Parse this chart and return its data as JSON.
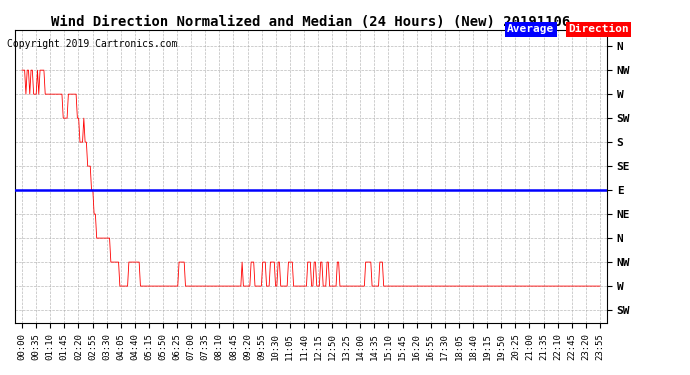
{
  "title": "Wind Direction Normalized and Median (24 Hours) (New) 20191106",
  "copyright": "Copyright 2019 Cartronics.com",
  "legend_blue_label": "Average",
  "legend_red_label": "Direction",
  "bg_color": "#ffffff",
  "plot_bg_color": "#ffffff",
  "grid_color": "#aaaaaa",
  "line_color_red": "#ff0000",
  "line_color_blue": "#0000ff",
  "ytick_labels_top_to_bottom": [
    "N",
    "NW",
    "W",
    "SW",
    "S",
    "SE",
    "E",
    "NE",
    "N",
    "NW",
    "W",
    "SW"
  ],
  "ytick_values": [
    360,
    315,
    270,
    225,
    180,
    135,
    90,
    45,
    0,
    -45,
    -90,
    -135
  ],
  "ylim": [
    -160,
    390
  ],
  "blue_line_y": 90,
  "time_labels": [
    "00:00",
    "00:35",
    "01:10",
    "01:45",
    "02:20",
    "02:55",
    "03:30",
    "04:05",
    "04:40",
    "05:15",
    "05:50",
    "06:25",
    "07:00",
    "07:35",
    "08:10",
    "08:45",
    "09:20",
    "09:55",
    "10:30",
    "11:05",
    "11:40",
    "12:15",
    "12:50",
    "13:25",
    "14:00",
    "14:35",
    "15:10",
    "15:45",
    "16:20",
    "16:55",
    "17:30",
    "18:05",
    "18:40",
    "19:15",
    "19:50",
    "20:25",
    "21:00",
    "21:35",
    "22:10",
    "22:45",
    "23:20",
    "23:55"
  ],
  "red_data_raw": [
    315,
    315,
    315,
    270,
    315,
    315,
    270,
    315,
    315,
    270,
    270,
    270,
    315,
    270,
    315,
    315,
    315,
    315,
    270,
    270,
    270,
    270,
    270,
    270,
    270,
    270,
    270,
    270,
    270,
    270,
    270,
    270,
    225,
    225,
    225,
    225,
    270,
    270,
    270,
    270,
    270,
    270,
    270,
    225,
    225,
    180,
    180,
    180,
    225,
    180,
    180,
    135,
    135,
    135,
    90,
    90,
    45,
    45,
    0,
    0,
    0,
    0,
    0,
    0,
    0,
    0,
    0,
    0,
    0,
    -45,
    -45,
    -45,
    -45,
    -45,
    -45,
    -45,
    -90,
    -90,
    -90,
    -90,
    -90,
    -90,
    -90,
    -45,
    -45,
    -45,
    -45,
    -45,
    -45,
    -45,
    -45,
    -45,
    -90,
    -90,
    -90,
    -90,
    -90,
    -90,
    -90,
    -90,
    -90,
    -90,
    -90,
    -90,
    -90,
    -90,
    -90,
    -90,
    -90,
    -90,
    -90,
    -90,
    -90,
    -90,
    -90,
    -90,
    -90,
    -90,
    -90,
    -90,
    -90,
    -90,
    -45,
    -45,
    -45,
    -45,
    -45,
    -90,
    -90,
    -90,
    -90,
    -90,
    -90,
    -90,
    -90,
    -90,
    -90,
    -90,
    -90,
    -90,
    -90,
    -90,
    -90,
    -90,
    -90,
    -90,
    -90,
    -90,
    -90,
    -90,
    -90,
    -90,
    -90,
    -90,
    -90,
    -90,
    -90,
    -90,
    -90,
    -90,
    -90,
    -90,
    -90,
    -90,
    -90,
    -90,
    -90,
    -90,
    -90,
    -90,
    -90,
    -45,
    -90,
    -90,
    -90,
    -90,
    -90,
    -90,
    -45,
    -45,
    -45,
    -90,
    -90,
    -90,
    -90,
    -90,
    -90,
    -45,
    -45,
    -45,
    -90,
    -90,
    -90,
    -45,
    -45,
    -45,
    -45,
    -90,
    -90,
    -45,
    -45,
    -90,
    -90,
    -90,
    -90,
    -90,
    -90,
    -45,
    -45,
    -45,
    -45,
    -90,
    -90,
    -90,
    -90,
    -90,
    -90,
    -90,
    -90,
    -90,
    -90,
    -90,
    -45,
    -45,
    -45,
    -90,
    -90,
    -45,
    -45,
    -90,
    -90,
    -90,
    -45,
    -45,
    -90,
    -90,
    -90,
    -45,
    -45,
    -90,
    -90,
    -90,
    -90,
    -90,
    -90,
    -45,
    -45,
    -90,
    -90,
    -90,
    -90,
    -90,
    -90,
    -90,
    -90,
    -90,
    -90,
    -90,
    -90,
    -90,
    -90,
    -90,
    -90,
    -90,
    -90,
    -90,
    -90,
    -45,
    -45,
    -45,
    -45,
    -45,
    -90,
    -90,
    -90,
    -90,
    -90,
    -90,
    -45,
    -45,
    -45,
    -90,
    -90,
    -90,
    -90,
    -90,
    -90,
    -90,
    -90,
    -90,
    -90,
    -90,
    -90,
    -90,
    -90,
    -90,
    -90,
    -90,
    -90,
    -90,
    -90,
    -90,
    -90,
    -90,
    -90,
    -90,
    -90,
    -90,
    -90,
    -90,
    -90,
    -90,
    -90,
    -90,
    -90,
    -90,
    -90,
    -90,
    -90,
    -90,
    -90,
    -90,
    -90,
    -90,
    -90,
    -90,
    -90,
    -90,
    -90,
    -90,
    -90,
    -90,
    -90,
    -90,
    -90,
    -90,
    -90,
    -90,
    -90,
    -90,
    -90,
    -90,
    -90,
    -90,
    -90,
    -90,
    -90,
    -90,
    -90,
    -90,
    -90,
    -90,
    -90,
    -90,
    -90,
    -90,
    -90,
    -90,
    -90,
    -90,
    -90,
    -90,
    -90,
    -90,
    -90,
    -90,
    -90,
    -90,
    -90,
    -90,
    -90,
    -90,
    -90,
    -90,
    -90,
    -90,
    -90,
    -90,
    -90,
    -90,
    -90,
    -90,
    -90,
    -90,
    -90,
    -90,
    -90,
    -90,
    -90,
    -90,
    -90,
    -90,
    -90,
    -90,
    -90,
    -90,
    -90,
    -90,
    -90,
    -90,
    -90,
    -90,
    -90,
    -90,
    -90,
    -90,
    -90,
    -90,
    -90,
    -90,
    -90,
    -90,
    -90,
    -90,
    -90,
    -90,
    -90,
    -90,
    -90,
    -90,
    -90,
    -90,
    -90,
    -90,
    -90,
    -90,
    -90,
    -90,
    -90,
    -90,
    -90,
    -90,
    -90,
    -90,
    -90,
    -90,
    -90,
    -90,
    -90,
    -90,
    -90,
    -90,
    -90,
    -90,
    -90,
    -90,
    -90,
    -90,
    -90,
    -90
  ],
  "title_fontsize": 10,
  "copyright_fontsize": 7,
  "axis_label_fontsize": 6.5,
  "ytick_fontsize": 8
}
